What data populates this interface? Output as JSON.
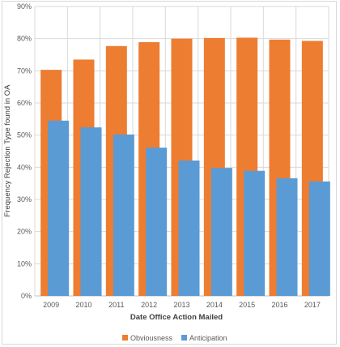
{
  "chart_data": {
    "type": "bar",
    "categories": [
      "2009",
      "2010",
      "2011",
      "2012",
      "2013",
      "2014",
      "2015",
      "2016",
      "2017"
    ],
    "series": [
      {
        "name": "Obviousness",
        "values": [
          70.3,
          73.5,
          77.7,
          78.9,
          80.0,
          80.2,
          80.3,
          79.7,
          79.3
        ],
        "color": "#ed7d31"
      },
      {
        "name": "Anticipation",
        "values": [
          54.5,
          52.4,
          50.2,
          46.1,
          42.1,
          39.8,
          38.9,
          36.6,
          35.6
        ],
        "color": "#5b9bd5"
      }
    ],
    "xlabel": "Date Office Action Mailed",
    "ylabel": "Frequency Rejection Type found in OA",
    "ylim": [
      0,
      90
    ],
    "y_ticks": [
      "0%",
      "10%",
      "20%",
      "30%",
      "40%",
      "50%",
      "60%",
      "70%",
      "80%",
      "90%"
    ],
    "grid": true,
    "legend_position": "bottom",
    "bar_layout": "overlapped"
  }
}
